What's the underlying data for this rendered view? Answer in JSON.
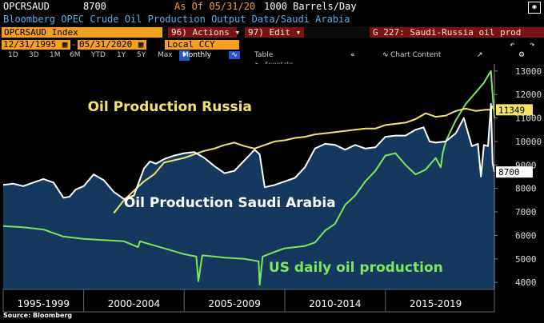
{
  "header": {
    "ticker": "OPCRSAUD",
    "last_value": "8700",
    "as_of": "As Of 05/31/20",
    "units": "1000 Barrels/Day",
    "subtitle": "Bloomberg OPEC Crude Oil Production Output Data/Saudi Arabia"
  },
  "toolbar": {
    "ticker_field": "OPCRSAUD Index",
    "actions_label": "96) Actions",
    "edit_label": "97) Edit",
    "graph_title": "G 227: Saudi-Russia oil prod",
    "start_date": "12/31/1995",
    "end_date": "05/31/2020",
    "currency": "Local CCY",
    "periods": [
      "1D",
      "3D",
      "1M",
      "6M",
      "YTD",
      "1Y",
      "5Y",
      "Max"
    ],
    "frequency": "Monthly",
    "table_label": "Table",
    "chart_content_label": "Chart Content",
    "annotate_label": "Annotate"
  },
  "source_note": "Source: Bloomberg",
  "colors": {
    "saudi_fill": "#15395e",
    "saudi_line": "#ffffff",
    "russia_line": "#f4e36a",
    "us_line": "#7ce85c",
    "accent_orange": "#f4a020",
    "action_red": "#7a1414"
  },
  "chart_data": {
    "type": "line",
    "title": "",
    "ylabel": "",
    "ylim": [
      3700,
      13300
    ],
    "yticks": [
      "13000",
      "12000",
      "11000",
      "10000",
      "9000",
      "8000",
      "7000",
      "6000",
      "5000",
      "4000"
    ],
    "xlim": [
      1996.0,
      2020.42
    ],
    "x_categories": [
      "1995-1999",
      "2000-2004",
      "2005-2009",
      "2010-2014",
      "2015-2019"
    ],
    "last_value_labels": [
      {
        "series": "Oil Production Russia",
        "value": "11349"
      },
      {
        "series": "Oil Production Saudi Arabia",
        "value": "8700"
      }
    ],
    "series": [
      {
        "name": "Oil Production Saudi Arabia",
        "style": "area",
        "x": [
          1996.0,
          1996.5,
          1997.0,
          1997.5,
          1998.0,
          1998.5,
          1999.0,
          1999.3,
          1999.6,
          2000.0,
          2000.5,
          2001.0,
          2001.5,
          2002.0,
          2002.5,
          2003.0,
          2003.3,
          2003.6,
          2004.0,
          2004.5,
          2005.0,
          2005.5,
          2006.0,
          2006.5,
          2007.0,
          2007.5,
          2008.0,
          2008.5,
          2008.75,
          2009.0,
          2009.5,
          2010.0,
          2010.5,
          2011.0,
          2011.5,
          2012.0,
          2012.5,
          2013.0,
          2013.5,
          2014.0,
          2014.5,
          2015.0,
          2015.5,
          2016.0,
          2016.5,
          2016.9,
          2017.2,
          2017.5,
          2018.0,
          2018.5,
          2018.9,
          2019.3,
          2019.6,
          2019.75,
          2019.9,
          2020.1,
          2020.25,
          2020.33,
          2020.42
        ],
        "y": [
          8150,
          8200,
          8100,
          8250,
          8400,
          8250,
          7600,
          7650,
          7950,
          8100,
          8600,
          8350,
          7850,
          7550,
          7700,
          8850,
          9150,
          9050,
          9250,
          9400,
          9500,
          9550,
          9300,
          8950,
          8650,
          8750,
          9200,
          9650,
          9450,
          8050,
          8150,
          8300,
          8450,
          8900,
          9700,
          9900,
          9850,
          9650,
          9850,
          9700,
          9750,
          10200,
          10250,
          10250,
          10500,
          10600,
          10000,
          9950,
          10000,
          10350,
          11000,
          9800,
          9900,
          8500,
          9850,
          9800,
          11600,
          9100,
          8700
        ]
      },
      {
        "name": "Oil Production Russia",
        "x": [
          2001.5,
          2002.0,
          2002.5,
          2003.0,
          2003.5,
          2004.0,
          2004.5,
          2005.0,
          2005.5,
          2006.0,
          2006.5,
          2007.0,
          2007.5,
          2008.0,
          2008.5,
          2009.0,
          2009.5,
          2010.0,
          2010.5,
          2011.0,
          2011.5,
          2012.0,
          2012.5,
          2013.0,
          2013.5,
          2014.0,
          2014.5,
          2015.0,
          2015.5,
          2016.0,
          2016.5,
          2017.0,
          2017.5,
          2018.0,
          2018.5,
          2019.0,
          2019.5,
          2020.0,
          2020.25,
          2020.33,
          2020.42
        ],
        "y": [
          6950,
          7500,
          7900,
          8300,
          8600,
          9100,
          9200,
          9300,
          9450,
          9600,
          9700,
          9850,
          9950,
          9800,
          9700,
          9850,
          10000,
          10050,
          10150,
          10200,
          10300,
          10350,
          10400,
          10450,
          10500,
          10550,
          10550,
          10700,
          10750,
          10800,
          10950,
          11200,
          11050,
          11100,
          11300,
          11400,
          11300,
          11350,
          11350,
          11500,
          11349
        ]
      },
      {
        "name": "US daily oil production",
        "x": [
          1996.0,
          1997.0,
          1998.0,
          1999.0,
          2000.0,
          2001.0,
          2002.0,
          2002.7,
          2002.8,
          2003.0,
          2004.0,
          2005.0,
          2005.6,
          2005.7,
          2005.9,
          2006.5,
          2007.0,
          2008.0,
          2008.7,
          2008.75,
          2008.9,
          2009.5,
          2010.0,
          2011.0,
          2011.5,
          2012.0,
          2012.5,
          2013.0,
          2013.5,
          2014.0,
          2014.5,
          2015.0,
          2015.5,
          2016.0,
          2016.5,
          2017.0,
          2017.5,
          2017.75,
          2017.85,
          2018.0,
          2018.5,
          2019.0,
          2019.5,
          2019.9,
          2020.1,
          2020.25,
          2020.33,
          2020.42
        ],
        "y": [
          6400,
          6350,
          6250,
          5950,
          5850,
          5800,
          5750,
          5500,
          5750,
          5700,
          5450,
          5200,
          5100,
          4050,
          5150,
          5100,
          5050,
          5000,
          4900,
          3900,
          5100,
          5300,
          5450,
          5550,
          5700,
          6200,
          6500,
          7300,
          7700,
          8300,
          8750,
          9400,
          9500,
          9000,
          8600,
          8800,
          9300,
          8900,
          9500,
          10000,
          10900,
          11600,
          12100,
          12500,
          12800,
          13000,
          12000,
          11000
        ]
      }
    ],
    "annotations": [
      "Oil Production Russia",
      "Oil Production Saudi Arabia",
      "US daily oil production"
    ]
  }
}
